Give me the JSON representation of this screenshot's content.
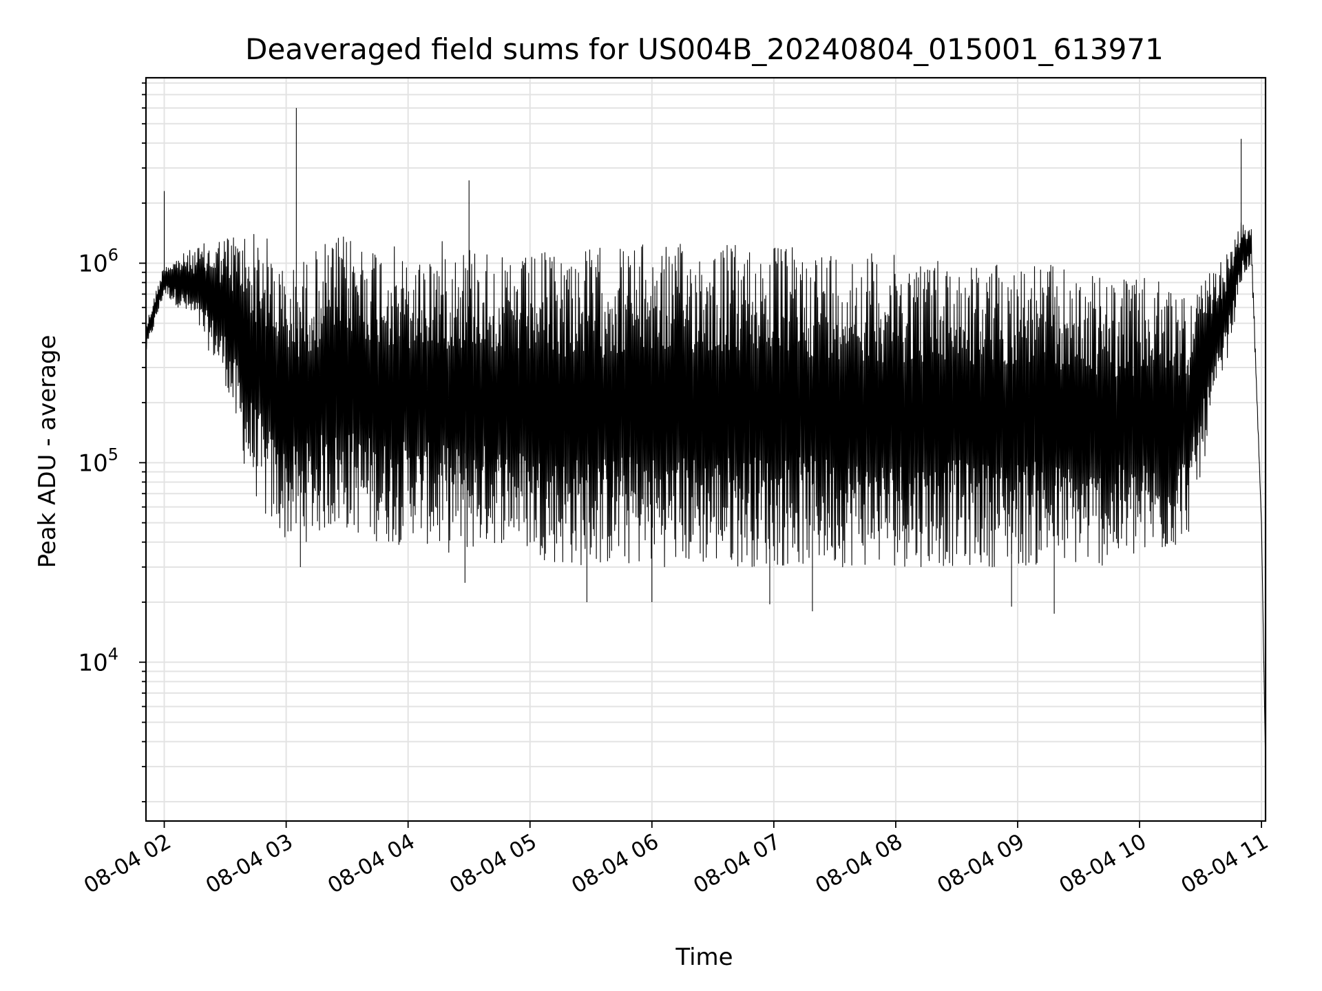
{
  "chart_data": {
    "type": "line",
    "title": "Deaveraged field sums for US004B_20240804_015001_613971",
    "xlabel": "Time",
    "ylabel": "Peak ADU - average",
    "yscale": "log",
    "xlim": [
      "2024-08-04 01:51",
      "2024-08-04 11:02"
    ],
    "ylim": [
      1600,
      8500000
    ],
    "grid": true,
    "x_ticks": [
      "08-04 02",
      "08-04 03",
      "08-04 04",
      "08-04 05",
      "08-04 06",
      "08-04 07",
      "08-04 08",
      "08-04 09",
      "08-04 10",
      "08-04 11"
    ],
    "y_ticks": [
      {
        "base": "10",
        "exp": "4",
        "value": 10000
      },
      {
        "base": "10",
        "exp": "5",
        "value": 100000
      },
      {
        "base": "10",
        "exp": "6",
        "value": 1000000
      }
    ],
    "series_color": "#000000",
    "envelope": {
      "x": [
        "01:51",
        "02:00",
        "02:15",
        "02:30",
        "02:40",
        "02:50",
        "03:00",
        "03:10",
        "03:20",
        "03:30",
        "03:45",
        "03:55",
        "04:00",
        "04:15",
        "04:30",
        "04:40",
        "04:50",
        "05:00",
        "05:15",
        "05:30",
        "05:45",
        "06:00",
        "06:15",
        "06:30",
        "06:45",
        "07:00",
        "07:15",
        "07:30",
        "07:45",
        "08:00",
        "08:15",
        "08:30",
        "08:45",
        "09:00",
        "09:15",
        "09:30",
        "09:45",
        "10:00",
        "10:15",
        "10:25",
        "10:35",
        "10:45",
        "10:50",
        "10:55",
        "11:00",
        "11:02"
      ],
      "upper": [
        500000,
        1000000,
        1200000,
        1400000,
        1500000,
        1400000,
        900000,
        1100000,
        1300000,
        1400000,
        1300000,
        1200000,
        1000000,
        1300000,
        1300000,
        1200000,
        1000000,
        1100000,
        1200000,
        1200000,
        1250000,
        1250000,
        1250000,
        1300000,
        1250000,
        1250000,
        1200000,
        1200000,
        1150000,
        1100000,
        1100000,
        1050000,
        1000000,
        1050000,
        1000000,
        900000,
        850000,
        850000,
        800000,
        700000,
        900000,
        1200000,
        1600000,
        1500000,
        50000,
        3000
      ],
      "lower": [
        350000,
        700000,
        500000,
        250000,
        90000,
        50000,
        40000,
        40000,
        45000,
        45000,
        40000,
        38000,
        45000,
        35000,
        35000,
        38000,
        40000,
        35000,
        30000,
        30000,
        30000,
        30000,
        30000,
        30000,
        30000,
        30000,
        30000,
        30000,
        30000,
        30000,
        30000,
        30000,
        30000,
        30000,
        30000,
        30000,
        30000,
        32000,
        35000,
        45000,
        150000,
        400000,
        800000,
        1000000,
        50000,
        3000
      ]
    },
    "spikes": [
      {
        "x": "02:00",
        "y": 2300000
      },
      {
        "x": "03:05",
        "y": 6000000
      },
      {
        "x": "04:30",
        "y": 2600000
      },
      {
        "x": "10:50",
        "y": 4200000
      },
      {
        "x": "03:07",
        "y": 30000
      },
      {
        "x": "04:28",
        "y": 25000
      },
      {
        "x": "05:28",
        "y": 20000
      },
      {
        "x": "06:00",
        "y": 20000
      },
      {
        "x": "06:58",
        "y": 19500
      },
      {
        "x": "07:19",
        "y": 18000
      },
      {
        "x": "08:57",
        "y": 19000
      },
      {
        "x": "09:18",
        "y": 17500
      }
    ]
  }
}
